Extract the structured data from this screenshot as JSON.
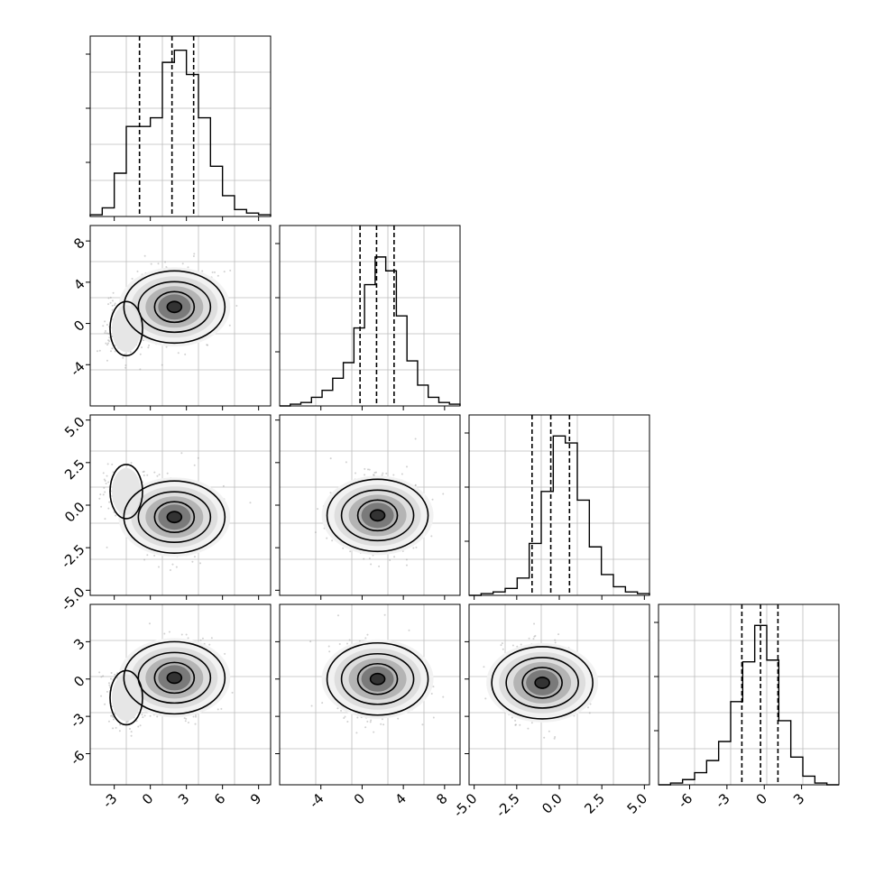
{
  "chart_data": [
    {
      "type": "histogram",
      "panel": "param-1-hist",
      "xlim": [
        -5,
        10
      ],
      "x": [
        -5,
        -4,
        -3,
        -2,
        -1,
        0,
        1,
        2,
        3,
        4,
        5,
        6,
        7,
        8,
        9,
        10
      ],
      "values": [
        0.01,
        0.05,
        0.25,
        0.52,
        0.52,
        0.57,
        0.89,
        0.96,
        0.82,
        0.57,
        0.29,
        0.12,
        0.04,
        0.02,
        0.01
      ],
      "quantiles": [
        -0.9,
        1.8,
        3.6
      ],
      "xticks": [
        "-3",
        "0",
        "3",
        "6",
        "9"
      ],
      "yticks_shown": false
    },
    {
      "type": "histogram",
      "panel": "param-2-hist",
      "xlim": [
        -8,
        9.5
      ],
      "values": [
        0.0,
        0.01,
        0.02,
        0.05,
        0.09,
        0.16,
        0.25,
        0.45,
        0.7,
        0.86,
        0.78,
        0.52,
        0.26,
        0.12,
        0.05,
        0.02,
        0.01
      ],
      "quantiles": [
        -0.2,
        1.4,
        3.1
      ],
      "xticks": [
        "-4",
        "0",
        "4",
        "8"
      ],
      "yticks_shown": false
    },
    {
      "type": "histogram",
      "panel": "param-3-hist",
      "xlim": [
        -5.3,
        5.3
      ],
      "values": [
        0.0,
        0.01,
        0.02,
        0.04,
        0.1,
        0.3,
        0.6,
        0.92,
        0.88,
        0.55,
        0.28,
        0.12,
        0.05,
        0.02,
        0.01
      ],
      "quantiles": [
        -1.6,
        -0.5,
        0.6
      ],
      "xticks": [
        "-5.0",
        "-2.5",
        "0.0",
        "2.5",
        "5.0"
      ],
      "yticks_shown": false
    },
    {
      "type": "histogram",
      "panel": "param-4-hist",
      "xlim": [
        -8.5,
        6
      ],
      "values": [
        0.0,
        0.01,
        0.03,
        0.07,
        0.14,
        0.25,
        0.48,
        0.71,
        0.92,
        0.72,
        0.37,
        0.16,
        0.05,
        0.01,
        0.0
      ],
      "quantiles": [
        -1.8,
        -0.3,
        1.1
      ],
      "xticks": [
        "-6",
        "-3",
        "0",
        "3"
      ],
      "yticks_shown": false
    },
    {
      "type": "scatter-contour",
      "panel": "param-1-vs-param-2",
      "xlim": [
        -5,
        10
      ],
      "ylim": [
        -8,
        9.5
      ],
      "yticks": [
        "-4",
        "0",
        "4",
        "8"
      ],
      "main_mode": [
        2,
        1.6
      ],
      "secondary_mode": [
        -2,
        -0.5
      ]
    },
    {
      "type": "scatter-contour",
      "panel": "param-1-vs-param-3",
      "xlim": [
        -5,
        10
      ],
      "ylim": [
        -5.3,
        5.3
      ],
      "yticks": [
        "-5.0",
        "-2.5",
        "0.0",
        "2.5",
        "5.0"
      ],
      "main_mode": [
        2,
        -0.7
      ],
      "secondary_mode": [
        -2,
        0.8
      ]
    },
    {
      "type": "scatter-contour",
      "panel": "param-2-vs-param-3",
      "xlim": [
        -8,
        9.5
      ],
      "ylim": [
        -5.3,
        5.3
      ],
      "main_mode": [
        1.5,
        -0.6
      ]
    },
    {
      "type": "scatter-contour",
      "panel": "param-1-vs-param-4",
      "xlim": [
        -5,
        10
      ],
      "ylim": [
        -8.5,
        6
      ],
      "yticks": [
        "-6",
        "-3",
        "0",
        "3"
      ],
      "main_mode": [
        2,
        0.1
      ],
      "secondary_mode": [
        -2,
        -1.5
      ]
    },
    {
      "type": "scatter-contour",
      "panel": "param-2-vs-param-4",
      "xlim": [
        -8,
        9.5
      ],
      "ylim": [
        -8.5,
        6
      ],
      "main_mode": [
        1.5,
        0
      ]
    },
    {
      "type": "scatter-contour",
      "panel": "param-3-vs-param-4",
      "xlim": [
        -5.3,
        5.3
      ],
      "ylim": [
        -8.5,
        6
      ],
      "main_mode": [
        -1,
        -0.3
      ]
    }
  ]
}
